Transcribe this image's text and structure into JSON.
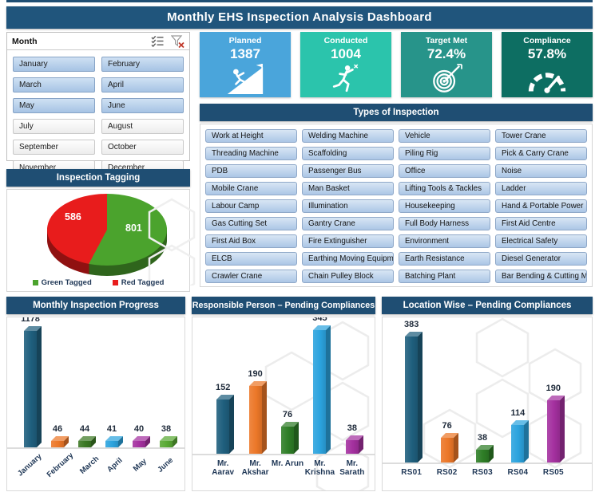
{
  "title": "Monthly EHS Inspection Analysis Dashboard",
  "colors": {
    "title_bar": "#20557C",
    "section_header": "#1F4E73",
    "slicer_selected_top": "#CFE1F3",
    "slicer_selected_bottom": "#A6C3E4",
    "label_text": "#1F3756"
  },
  "icons": [
    "multi-select-icon",
    "clear-filter-icon",
    "climber-icon",
    "runner-icon",
    "target-icon",
    "gauge-icon"
  ],
  "slicer": {
    "label": "Month",
    "items": [
      {
        "label": "January",
        "selected": true
      },
      {
        "label": "February",
        "selected": true
      },
      {
        "label": "March",
        "selected": true
      },
      {
        "label": "April",
        "selected": true
      },
      {
        "label": "May",
        "selected": true
      },
      {
        "label": "June",
        "selected": true
      },
      {
        "label": "July",
        "selected": false
      },
      {
        "label": "August",
        "selected": false
      },
      {
        "label": "September",
        "selected": false
      },
      {
        "label": "October",
        "selected": false
      },
      {
        "label": "November",
        "selected": false
      },
      {
        "label": "December",
        "selected": false
      }
    ]
  },
  "kpis": [
    {
      "label": "Planned",
      "value": "1387",
      "color": "#4AA5DB",
      "icon": "climber-icon"
    },
    {
      "label": "Conducted",
      "value": "1004",
      "color": "#2BC4AC",
      "icon": "runner-icon"
    },
    {
      "label": "Target Met",
      "value": "72.4%",
      "color": "#27948A",
      "icon": "target-icon"
    },
    {
      "label": "Compliance",
      "value": "57.8%",
      "color": "#0D6E62",
      "icon": "gauge-icon"
    }
  ],
  "types_of_inspection": {
    "header": "Types of Inspection",
    "items": [
      "Work at Height",
      "Welding Machine",
      "Vehicle",
      "Tower Crane",
      "Threading Machine",
      "Scaffolding",
      "Piling Rig",
      "Pick & Carry Crane",
      "PDB",
      "Passenger Bus",
      "Office",
      "Noise",
      "Mobile Crane",
      "Man Basket",
      "Lifting Tools & Tackles",
      "Ladder",
      "Labour Camp",
      "Illumination",
      "Housekeeping",
      "Hand & Portable Power ...",
      "Gas Cutting Set",
      "Gantry Crane",
      "Full Body Harness",
      "First Aid Centre",
      "First Aid Box",
      "Fire Extinguisher",
      "Environment",
      "Electrical Safety",
      "ELCB",
      "Earthing Moving Equipm...",
      "Earth Resistance",
      "Diesel Generator",
      "Crawler Crane",
      "Chain Pulley Block",
      "Batching Plant",
      "Bar Bending & Cutting M..."
    ]
  },
  "chart_data": [
    {
      "type": "pie",
      "title": "Inspection Tagging",
      "labels": [
        "Green Tagged",
        "Red Tagged"
      ],
      "values": [
        801,
        586
      ],
      "colors": [
        "#4BA32D",
        "#E81C1C"
      ],
      "legend_position": "bottom",
      "data_labels": true,
      "style": "3d"
    },
    {
      "type": "bar",
      "title": "Monthly Inspection Progress",
      "categories": [
        "January",
        "February",
        "March",
        "April",
        "May",
        "June"
      ],
      "values": [
        1178,
        46,
        44,
        41,
        40,
        38
      ],
      "colors": [
        "#1F5F7E",
        "#EC7728",
        "#3B7824",
        "#2BA3DE",
        "#A4309F",
        "#58A933"
      ],
      "ylim": [
        0,
        1178
      ],
      "label_rotation": -42,
      "data_labels": true,
      "style": "3d"
    },
    {
      "type": "bar",
      "title": "Responsible Person – Pending Compliances",
      "categories": [
        "Mr. Aarav",
        "Mr. Akshar",
        "Mr. Arun",
        "Mr. Krishna",
        "Mr. Sarath"
      ],
      "values": [
        152,
        190,
        76,
        345,
        38
      ],
      "colors": [
        "#1F5F7E",
        "#EC7728",
        "#2E7D26",
        "#2BA3DE",
        "#A4309F"
      ],
      "ylim": [
        0,
        345
      ],
      "label_rotation": 0,
      "data_labels": true,
      "style": "3d"
    },
    {
      "type": "bar",
      "title": "Location Wise – Pending Compliances",
      "categories": [
        "RS01",
        "RS02",
        "RS03",
        "RS04",
        "RS05"
      ],
      "values": [
        383,
        76,
        38,
        114,
        190
      ],
      "colors": [
        "#1F5F7E",
        "#EC7728",
        "#2E7D26",
        "#2BA3DE",
        "#A4309F"
      ],
      "ylim": [
        0,
        383
      ],
      "label_rotation": 0,
      "data_labels": true,
      "style": "3d"
    }
  ]
}
